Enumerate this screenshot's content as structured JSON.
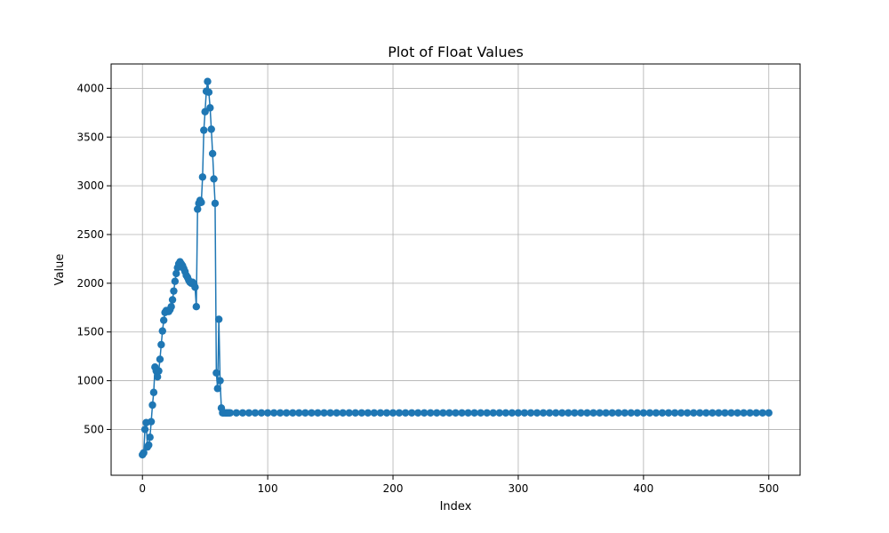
{
  "chart_data": {
    "type": "line",
    "title": "Plot of Float Values",
    "xlabel": "Index",
    "ylabel": "Value",
    "xlim": [
      -25,
      525
    ],
    "ylim": [
      30,
      4250
    ],
    "xticks": [
      0,
      100,
      200,
      300,
      400,
      500
    ],
    "yticks": [
      500,
      1000,
      1500,
      2000,
      2500,
      3000,
      3500,
      4000
    ],
    "grid": true,
    "series": [
      {
        "color": "#1f77b4",
        "marker": "circle",
        "points": [
          [
            0,
            240
          ],
          [
            1,
            260
          ],
          [
            2,
            500
          ],
          [
            3,
            570
          ],
          [
            4,
            320
          ],
          [
            5,
            340
          ],
          [
            6,
            420
          ],
          [
            7,
            580
          ],
          [
            8,
            750
          ],
          [
            9,
            880
          ],
          [
            10,
            1140
          ],
          [
            11,
            1100
          ],
          [
            12,
            1040
          ],
          [
            13,
            1100
          ],
          [
            14,
            1220
          ],
          [
            15,
            1370
          ],
          [
            16,
            1510
          ],
          [
            17,
            1620
          ],
          [
            18,
            1700
          ],
          [
            19,
            1720
          ],
          [
            20,
            1720
          ],
          [
            21,
            1710
          ],
          [
            22,
            1730
          ],
          [
            23,
            1760
          ],
          [
            24,
            1830
          ],
          [
            25,
            1920
          ],
          [
            26,
            2020
          ],
          [
            27,
            2100
          ],
          [
            28,
            2160
          ],
          [
            29,
            2200
          ],
          [
            30,
            2220
          ],
          [
            31,
            2200
          ],
          [
            32,
            2180
          ],
          [
            33,
            2150
          ],
          [
            34,
            2120
          ],
          [
            35,
            2080
          ],
          [
            36,
            2060
          ],
          [
            37,
            2030
          ],
          [
            38,
            2010
          ],
          [
            39,
            2000
          ],
          [
            40,
            2010
          ],
          [
            41,
            1990
          ],
          [
            42,
            1960
          ],
          [
            43,
            1760
          ],
          [
            44,
            2760
          ],
          [
            45,
            2820
          ],
          [
            46,
            2850
          ],
          [
            47,
            2830
          ],
          [
            48,
            3090
          ],
          [
            49,
            3570
          ],
          [
            50,
            3760
          ],
          [
            51,
            3970
          ],
          [
            52,
            4070
          ],
          [
            53,
            3960
          ],
          [
            54,
            3800
          ],
          [
            55,
            3580
          ],
          [
            56,
            3330
          ],
          [
            57,
            3070
          ],
          [
            58,
            2820
          ],
          [
            59,
            1080
          ],
          [
            60,
            920
          ],
          [
            61,
            1630
          ],
          [
            62,
            1000
          ],
          [
            63,
            720
          ],
          [
            64,
            670
          ],
          [
            65,
            670
          ],
          [
            66,
            670
          ],
          [
            67,
            670
          ],
          [
            68,
            670
          ],
          [
            69,
            670
          ],
          [
            70,
            670
          ],
          [
            75,
            670
          ],
          [
            80,
            670
          ],
          [
            85,
            670
          ],
          [
            90,
            670
          ],
          [
            95,
            670
          ],
          [
            100,
            670
          ],
          [
            105,
            670
          ],
          [
            110,
            670
          ],
          [
            115,
            670
          ],
          [
            120,
            670
          ],
          [
            125,
            670
          ],
          [
            130,
            670
          ],
          [
            135,
            670
          ],
          [
            140,
            670
          ],
          [
            145,
            670
          ],
          [
            150,
            670
          ],
          [
            155,
            670
          ],
          [
            160,
            670
          ],
          [
            165,
            670
          ],
          [
            170,
            670
          ],
          [
            175,
            670
          ],
          [
            180,
            670
          ],
          [
            185,
            670
          ],
          [
            190,
            670
          ],
          [
            195,
            670
          ],
          [
            200,
            670
          ],
          [
            205,
            670
          ],
          [
            210,
            670
          ],
          [
            215,
            670
          ],
          [
            220,
            670
          ],
          [
            225,
            670
          ],
          [
            230,
            670
          ],
          [
            235,
            670
          ],
          [
            240,
            670
          ],
          [
            245,
            670
          ],
          [
            250,
            670
          ],
          [
            255,
            670
          ],
          [
            260,
            670
          ],
          [
            265,
            670
          ],
          [
            270,
            670
          ],
          [
            275,
            670
          ],
          [
            280,
            670
          ],
          [
            285,
            670
          ],
          [
            290,
            670
          ],
          [
            295,
            670
          ],
          [
            300,
            670
          ],
          [
            305,
            670
          ],
          [
            310,
            670
          ],
          [
            315,
            670
          ],
          [
            320,
            670
          ],
          [
            325,
            670
          ],
          [
            330,
            670
          ],
          [
            335,
            670
          ],
          [
            340,
            670
          ],
          [
            345,
            670
          ],
          [
            350,
            670
          ],
          [
            355,
            670
          ],
          [
            360,
            670
          ],
          [
            365,
            670
          ],
          [
            370,
            670
          ],
          [
            375,
            670
          ],
          [
            380,
            670
          ],
          [
            385,
            670
          ],
          [
            390,
            670
          ],
          [
            395,
            670
          ],
          [
            400,
            670
          ],
          [
            405,
            670
          ],
          [
            410,
            670
          ],
          [
            415,
            670
          ],
          [
            420,
            670
          ],
          [
            425,
            670
          ],
          [
            430,
            670
          ],
          [
            435,
            670
          ],
          [
            440,
            670
          ],
          [
            445,
            670
          ],
          [
            450,
            670
          ],
          [
            455,
            670
          ],
          [
            460,
            670
          ],
          [
            465,
            670
          ],
          [
            470,
            670
          ],
          [
            475,
            670
          ],
          [
            480,
            670
          ],
          [
            485,
            670
          ],
          [
            490,
            670
          ],
          [
            495,
            670
          ],
          [
            500,
            670
          ]
        ]
      }
    ]
  }
}
